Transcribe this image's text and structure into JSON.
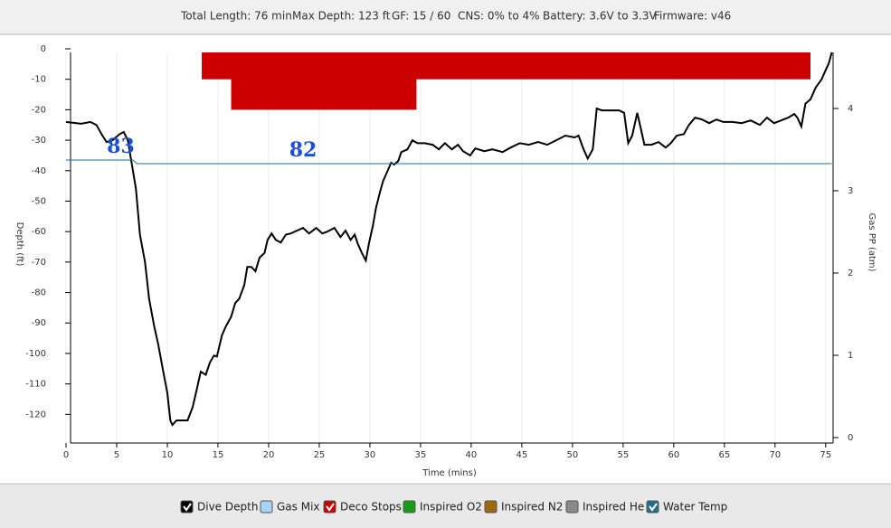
{
  "header": [
    "Total Length: 76 min",
    "Max Depth: 123 ft",
    "GF: 15 / 60",
    "CNS: 0% to 4%",
    "Battery: 3.6V to 3.3V",
    "Firmware: v46"
  ],
  "chart_data": {
    "type": "line",
    "x_label": "Time (mins)",
    "y_label": "Depth (ft)",
    "y2_label": "Gas PP (atm)",
    "xlim": [
      0,
      76
    ],
    "xticks": [
      0,
      5,
      10,
      15,
      20,
      25,
      30,
      35,
      40,
      45,
      50,
      55,
      60,
      65,
      70,
      75
    ],
    "ylim": [
      -130,
      0
    ],
    "yticks": [
      0,
      -10,
      -20,
      -30,
      -40,
      -50,
      -60,
      -70,
      -80,
      -90,
      -100,
      -110,
      -120
    ],
    "y2lim": [
      -0.088,
      4.725
    ],
    "y2ticks": [
      0,
      1,
      2,
      3,
      4
    ],
    "y3lim": [
      4.25,
      113.75
    ],
    "grid": true,
    "series": [
      {
        "name": "Dive Depth",
        "color": "#000000",
        "checked": true,
        "x": [
          0,
          1.5,
          2.4,
          3,
          3.5,
          4,
          4.6,
          5.3,
          5.7,
          6.1,
          6.4,
          6.9,
          7.3,
          7.8,
          8.2,
          8.7,
          9.1,
          9.6,
          10,
          10.3,
          10.5,
          10.9,
          11.3,
          12,
          12.5,
          12.9,
          13.3,
          13.8,
          14.2,
          14.6,
          14.9,
          15.4,
          15.8,
          16.3,
          16.7,
          17.1,
          17.6,
          17.9,
          18.3,
          18.7,
          19.1,
          19.6,
          19.9,
          20.3,
          20.7,
          21.2,
          21.7,
          22.2,
          22.8,
          23.4,
          24,
          24.7,
          25.3,
          25.8,
          26.5,
          27.1,
          27.6,
          28.1,
          28.5,
          28.8,
          29.2,
          29.6,
          29.9,
          30.3,
          30.6,
          31,
          31.3,
          31.7,
          32.1,
          32.4,
          32.8,
          33.1,
          33.7,
          34.2,
          34.7,
          35.4,
          36.2,
          36.8,
          37.4,
          38.1,
          38.7,
          39.2,
          39.9,
          40.4,
          41.3,
          42.1,
          43.1,
          43.9,
          44.8,
          45.7,
          46.6,
          47.5,
          48.4,
          49.3,
          50.2,
          50.6,
          51.1,
          51.5,
          52,
          52.4,
          52.9,
          53.8,
          54.6,
          55.1,
          55.5,
          55.9,
          56.4,
          56.7,
          57.1,
          57.8,
          58.5,
          59.2,
          59.7,
          60.3,
          61,
          61.5,
          62.1,
          62.8,
          63.5,
          64.2,
          64.9,
          65.8,
          66.7,
          67.6,
          68.5,
          69.2,
          69.9,
          70.6,
          71.3,
          71.9,
          72.2,
          72.6,
          73,
          73.5,
          74,
          74.6,
          74.9,
          75.3,
          75.6
        ],
        "values": [
          -24,
          -24.6,
          -24,
          -25,
          -28,
          -30.6,
          -30,
          -28,
          -27.3,
          -30,
          -36,
          -46,
          -61,
          -70,
          -82,
          -91,
          -97,
          -106,
          -113,
          -122,
          -123.5,
          -122,
          -122,
          -122,
          -117.6,
          -112,
          -106,
          -107,
          -103,
          -100.7,
          -101,
          -94,
          -91,
          -88,
          -83.5,
          -82,
          -77.5,
          -71.6,
          -71.6,
          -73,
          -68.6,
          -67,
          -62.7,
          -60.6,
          -62.7,
          -63.6,
          -61,
          -60.6,
          -59.7,
          -58.8,
          -60.6,
          -58.8,
          -60.6,
          -60,
          -58.8,
          -61.8,
          -59.7,
          -62.7,
          -61,
          -64,
          -67,
          -69.5,
          -64,
          -58,
          -52.3,
          -47,
          -43.4,
          -40.4,
          -37.4,
          -38,
          -36.8,
          -33.9,
          -33,
          -30,
          -31,
          -31,
          -31.5,
          -33,
          -31,
          -33,
          -31.5,
          -33.6,
          -35,
          -32.7,
          -33.6,
          -33,
          -33.9,
          -32.4,
          -31,
          -31.5,
          -30.6,
          -31.5,
          -30,
          -28.5,
          -29.1,
          -28.5,
          -33,
          -36,
          -33,
          -19.6,
          -20.2,
          -20.2,
          -20.2,
          -21,
          -31,
          -28.5,
          -21,
          -25.5,
          -31.5,
          -31.5,
          -30.6,
          -32.4,
          -31,
          -28.5,
          -28,
          -25,
          -22.6,
          -23.2,
          -24.4,
          -23.2,
          -24,
          -24,
          -24.4,
          -23.5,
          -25,
          -22.6,
          -24.4,
          -23.5,
          -22.6,
          -21.4,
          -22.6,
          -25.5,
          -18,
          -16.6,
          -12.8,
          -10,
          -7.7,
          -4.8,
          -1.2
        ]
      },
      {
        "name": "Gas Mix",
        "color": "#a9d3f5",
        "checked": false
      },
      {
        "name": "Deco Stops",
        "color": "#cc0000",
        "checked": true,
        "stops": [
          {
            "start": 13.4,
            "end": 73.5,
            "depth": -10
          },
          {
            "start": 16.3,
            "end": 34.6,
            "depth": -20
          }
        ]
      },
      {
        "name": "Inspired O2",
        "color": "#1a9a1a",
        "checked": false
      },
      {
        "name": "Inspired N2",
        "color": "#9a6a10",
        "checked": false
      },
      {
        "name": "Inspired He",
        "color": "#8a8a8a",
        "checked": false
      },
      {
        "name": "Water Temp",
        "color": "#1f6f8b",
        "checked": true,
        "axis": "y3",
        "x": [
          0,
          6.6,
          7,
          75.6
        ],
        "values": [
          83,
          83,
          82,
          82
        ],
        "labels": [
          {
            "x": 5.4,
            "value": 83
          },
          {
            "x": 23.4,
            "value": 82
          }
        ]
      }
    ]
  }
}
